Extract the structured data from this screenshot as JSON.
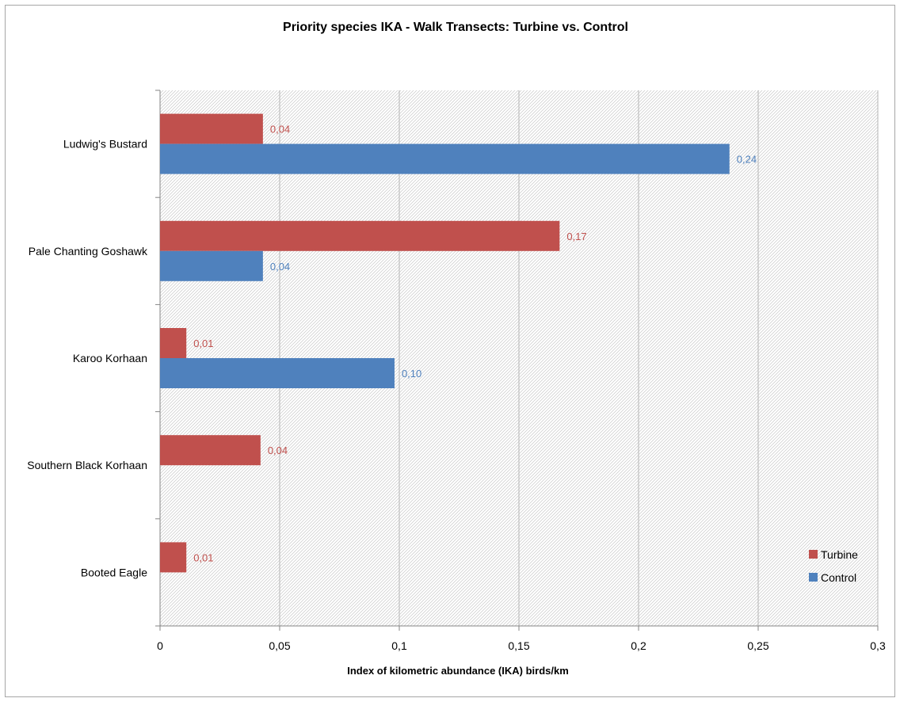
{
  "chart_data": {
    "type": "bar",
    "orientation": "horizontal",
    "title": "Priority species IKA - Walk Transects: Turbine vs. Control",
    "xlabel": "Index of kilometric abundance (IKA) birds/km",
    "ylabel": "",
    "categories": [
      "Ludwig's Bustard",
      "Pale Chanting Goshawk",
      "Karoo Korhaan",
      "Southern Black Korhaan",
      "Booted Eagle"
    ],
    "series": [
      {
        "name": "Turbine",
        "color": "#c0504d",
        "values": [
          0.043,
          0.167,
          0.011,
          0.042,
          0.011
        ],
        "labels": [
          "0,04",
          "0,17",
          "0,01",
          "0,04",
          "0,01"
        ]
      },
      {
        "name": "Control",
        "color": "#4f81bd",
        "values": [
          0.238,
          0.043,
          0.098,
          null,
          null
        ],
        "labels": [
          "0,24",
          "0,04",
          "0,10",
          "",
          ""
        ]
      }
    ],
    "xlim": [
      0,
      0.3
    ],
    "xticks": [
      0,
      0.05,
      0.1,
      0.15,
      0.2,
      0.25,
      0.3
    ],
    "xtick_labels": [
      "0",
      "0,05",
      "0,1",
      "0,15",
      "0,2",
      "0,25",
      "0,3"
    ],
    "grid": true,
    "legend_position": "bottom-right"
  }
}
